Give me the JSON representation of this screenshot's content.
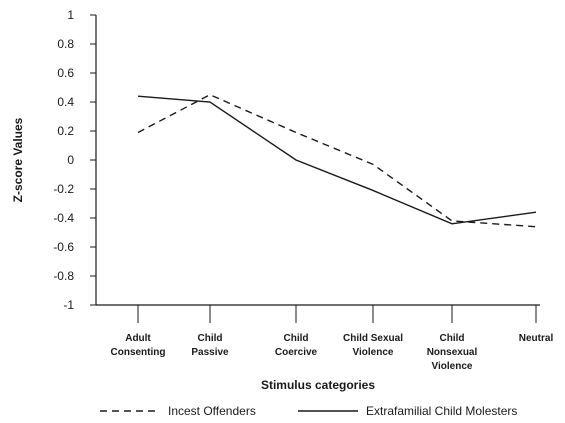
{
  "chart_data": {
    "type": "line",
    "title": "",
    "xlabel": "Stimulus categories",
    "ylabel": "Z-score Values",
    "ylim": [
      -1,
      1
    ],
    "yticks": [
      "1",
      "0.8",
      "0.6",
      "0.4",
      "0.2",
      "0",
      "-0.2",
      "-0.4",
      "-0.6",
      "-0.8",
      "-1"
    ],
    "categories": [
      [
        "Adult",
        "Consenting"
      ],
      [
        "Child",
        "Passive"
      ],
      [
        "Child",
        "Coercive"
      ],
      [
        "Child Sexual",
        "Violence"
      ],
      [
        "Child",
        "Nonsexual",
        "Violence"
      ],
      [
        "Neutral"
      ]
    ],
    "series": [
      {
        "name": "Incest Offenders",
        "style": "dashed",
        "color": "#1a1a1a",
        "values": [
          0.19,
          0.45,
          0.19,
          -0.03,
          -0.42,
          -0.46
        ]
      },
      {
        "name": "Extrafamilial Child Molesters",
        "style": "solid",
        "color": "#1a1a1a",
        "values": [
          0.44,
          0.4,
          0.0,
          -0.21,
          -0.44,
          -0.36
        ]
      }
    ],
    "grid": false,
    "legend_position": "bottom"
  }
}
